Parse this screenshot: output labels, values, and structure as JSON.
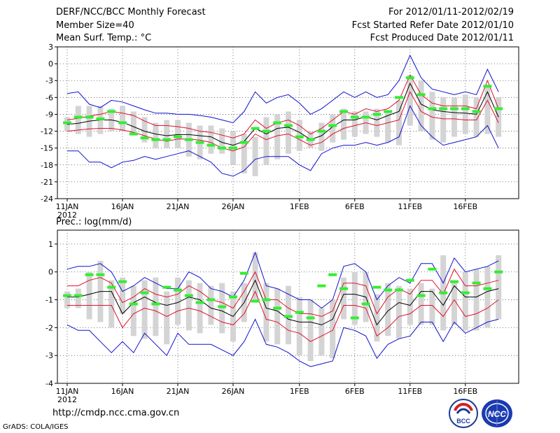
{
  "header": {
    "title": "DERF/NCC/BCC Monthly Forecast",
    "member_size": "Member Size=40",
    "variable1": "Mean Surf. Temp.: °C",
    "period": "For 2012/01/11-2012/02/19",
    "fcst_started": "Fcst Started Refer Date 2012/01/10",
    "fcst_produced": "Fcst Produced Date 2012/01/11"
  },
  "footer": {
    "url": "http://cmdp.ncc.cma.gov.cn",
    "credit": "GrADS: COLA/IGES",
    "logo1_text": "BCC",
    "logo2_text": "NCC"
  },
  "colors": {
    "box": "#d4d4d4",
    "ensemble_mean": "#000000",
    "spread": "#e01030",
    "extremes": "#1010d0",
    "observed": "#33ee33",
    "grid": "#555555"
  },
  "chart_data": [
    {
      "type": "line",
      "title": "Mean Surf. Temp.: °C",
      "x_tick_labels": [
        "11JAN",
        "16JAN",
        "21JAN",
        "26JAN",
        "1FEB",
        "6FEB",
        "11FEB",
        "16FEB"
      ],
      "x_year_label": "2012",
      "x_tick_days": [
        1,
        6,
        11,
        16,
        22,
        27,
        32,
        37
      ],
      "ylim": [
        -24,
        3
      ],
      "yticks": [
        3,
        0,
        -3,
        -6,
        -9,
        -12,
        -15,
        -18,
        -21,
        -24
      ],
      "days": [
        1,
        2,
        3,
        4,
        5,
        6,
        7,
        8,
        9,
        10,
        11,
        12,
        13,
        14,
        15,
        16,
        17,
        18,
        19,
        20,
        21,
        22,
        23,
        24,
        25,
        26,
        27,
        28,
        29,
        30,
        31,
        32,
        33,
        34,
        35,
        36,
        37,
        38,
        39,
        40
      ],
      "box_low": [
        -12,
        -12.5,
        -13,
        -12.5,
        -12,
        -12,
        -12.5,
        -14,
        -15,
        -15,
        -15,
        -16.5,
        -17,
        -16,
        -16,
        -18,
        -19.5,
        -20,
        -18,
        -17,
        -16,
        -15.5,
        -15,
        -15.5,
        -14,
        -13.5,
        -13,
        -12.5,
        -13,
        -14,
        -14.5,
        -11,
        -12,
        -13.5,
        -14,
        -13,
        -12.5,
        -13,
        -12.5,
        -13
      ],
      "box_high": [
        -9.5,
        -7.5,
        -7.5,
        -7.5,
        -8,
        -7.5,
        -8.5,
        -9.5,
        -10.5,
        -10,
        -10,
        -10.5,
        -11,
        -11,
        -11.5,
        -12,
        -12.5,
        -13,
        -9.5,
        -9,
        -8.5,
        -10,
        -12,
        -10.5,
        -9,
        -8,
        -8.5,
        -8.5,
        -8,
        -8.5,
        -6.5,
        -2,
        -3,
        -5,
        -6,
        -6,
        -5.5,
        -6,
        -4,
        -6
      ],
      "series": [
        {
          "name": "ensemble_max",
          "role": "extremes",
          "values": [
            -5.3,
            -5,
            -7.2,
            -7.8,
            -6.5,
            -6.8,
            -7.5,
            -8.2,
            -8.8,
            -8.8,
            -9,
            -9,
            -9.2,
            -9.5,
            -10,
            -10.5,
            -8.5,
            -5,
            -7,
            -6,
            -5.5,
            -7,
            -9,
            -8,
            -6.5,
            -5,
            -6,
            -5,
            -6,
            -5.5,
            -3,
            1.5,
            -2.5,
            -4.5,
            -5,
            -5.5,
            -5,
            -5.5,
            -1,
            -5
          ]
        },
        {
          "name": "spread_upper",
          "role": "spread",
          "values": [
            -10,
            -9.7,
            -9.3,
            -9,
            -8.5,
            -8.8,
            -9.2,
            -10.2,
            -11,
            -11,
            -11.2,
            -11.5,
            -12,
            -12.2,
            -12.7,
            -13.2,
            -12.5,
            -10,
            -11.5,
            -10.5,
            -10,
            -11,
            -12.5,
            -11.5,
            -10,
            -8.5,
            -9,
            -8,
            -8.5,
            -8,
            -6.5,
            -2,
            -5.5,
            -7,
            -7.5,
            -7.5,
            -7.5,
            -8,
            -3,
            -8
          ]
        },
        {
          "name": "ensemble_mean",
          "role": "ensemble_mean",
          "values": [
            -10.8,
            -10.6,
            -10.2,
            -10,
            -10,
            -10.4,
            -11.2,
            -12,
            -12.5,
            -12.8,
            -12.6,
            -12.6,
            -12.8,
            -13,
            -14,
            -14.5,
            -13.8,
            -11.5,
            -12.5,
            -11.5,
            -11.3,
            -12.2,
            -13.5,
            -12.8,
            -11.2,
            -10,
            -10,
            -9.4,
            -10,
            -9.2,
            -8.5,
            -3.5,
            -7.2,
            -8.2,
            -8.5,
            -8.7,
            -8.8,
            -9,
            -5,
            -9.5
          ]
        },
        {
          "name": "spread_lower",
          "role": "spread",
          "values": [
            -12,
            -11.8,
            -11.6,
            -11.5,
            -11.5,
            -11.8,
            -12.2,
            -12.8,
            -13.4,
            -13.8,
            -13.4,
            -13.4,
            -13.6,
            -14,
            -15,
            -15.5,
            -14.8,
            -12.5,
            -13.5,
            -12.8,
            -12.5,
            -13.5,
            -14.5,
            -14,
            -12.5,
            -11.5,
            -11,
            -10.5,
            -11,
            -10.5,
            -10,
            -5,
            -8.5,
            -9.5,
            -9.8,
            -9.8,
            -10,
            -10,
            -6.5,
            -10.5
          ]
        },
        {
          "name": "ensemble_min",
          "role": "extremes",
          "values": [
            -15.5,
            -15.5,
            -17.5,
            -17.5,
            -18.5,
            -17.5,
            -17.2,
            -16.5,
            -17,
            -16.5,
            -16,
            -15.5,
            -16.5,
            -17.5,
            -19.5,
            -20,
            -19,
            -17,
            -16.5,
            -16.5,
            -16.5,
            -18,
            -19,
            -16,
            -15,
            -14.5,
            -14.5,
            -14,
            -14.5,
            -14,
            -13,
            -7.5,
            -11,
            -13,
            -14.5,
            -14,
            -13.5,
            -13,
            -11,
            -15
          ]
        },
        {
          "name": "observed",
          "role": "observed",
          "values": [
            -10.5,
            -9.5,
            -9.5,
            -9.8,
            -8.5,
            -10.5,
            -12.5,
            -13.2,
            -13.5,
            -13.5,
            -13,
            -13.5,
            -14,
            -14.5,
            -15,
            -15,
            -14,
            -11.5,
            -12,
            -10.5,
            -11,
            -13,
            -13.5,
            -12,
            -11,
            -8.5,
            -9.5,
            -9.5,
            -9,
            -8.5,
            -6,
            -2.5,
            -5.5,
            -8,
            -8,
            -8,
            -8,
            -8.5,
            -4,
            -8
          ]
        }
      ]
    },
    {
      "type": "line",
      "title": "Prec.: log(mm/d)",
      "x_tick_labels": [
        "11JAN",
        "16JAN",
        "21JAN",
        "26JAN",
        "1FEB",
        "6FEB",
        "11FEB",
        "16FEB"
      ],
      "x_year_label": "2012",
      "x_tick_days": [
        1,
        6,
        11,
        16,
        22,
        27,
        32,
        37
      ],
      "ylim": [
        -4,
        1.5
      ],
      "yticks": [
        1,
        0,
        -1,
        -2,
        -3,
        -4
      ],
      "days": [
        1,
        2,
        3,
        4,
        5,
        6,
        7,
        8,
        9,
        10,
        11,
        12,
        13,
        14,
        15,
        16,
        17,
        18,
        19,
        20,
        21,
        22,
        23,
        24,
        25,
        26,
        27,
        28,
        29,
        30,
        31,
        32,
        33,
        34,
        35,
        36,
        37,
        38,
        39,
        40
      ],
      "box_low": [
        -1.3,
        -1.3,
        -1.7,
        -1.8,
        -2,
        -1.5,
        -2.3,
        -2.4,
        -2.3,
        -2.6,
        -1.9,
        -2.1,
        -2.2,
        -1.9,
        -2.2,
        -2.5,
        -1.8,
        -1,
        -2.5,
        -2.6,
        -2.6,
        -3,
        -3.2,
        -3,
        -3.1,
        -1.7,
        -1.9,
        -1.8,
        -2.5,
        -2.3,
        -2.4,
        -1.9,
        -1.9,
        -1.9,
        -2.1,
        -1.9,
        -2.1,
        -2.1,
        -2,
        -1.7
      ],
      "box_high": [
        -0.7,
        -0.6,
        0,
        0.4,
        -0.3,
        -0.2,
        -0.5,
        -0.3,
        -0.2,
        -0.7,
        -0.2,
        -0.3,
        -0.4,
        -0.5,
        -0.4,
        -0.7,
        -0.4,
        0.7,
        -0.4,
        -0.6,
        -0.5,
        -0.9,
        -1.0,
        -1.3,
        -1.0,
        -0.2,
        0,
        0,
        -0.8,
        -0.4,
        -0.5,
        -0.6,
        -0.4,
        -0.6,
        0.6,
        -0.3,
        0,
        0.1,
        0.2,
        0.6
      ],
      "series": [
        {
          "name": "ensemble_max",
          "role": "extremes",
          "values": [
            0.1,
            0.2,
            0.2,
            0.3,
            0,
            -0.7,
            -0.5,
            -0.2,
            -0.4,
            -0.6,
            -0.6,
            0,
            -0.2,
            -0.6,
            -0.7,
            -0.9,
            -0.3,
            0.7,
            -0.5,
            -0.6,
            -0.8,
            -1,
            -1,
            -1.3,
            -1,
            0.2,
            0.3,
            0,
            -1,
            -0.5,
            -0.2,
            -0.4,
            0.3,
            0.3,
            -0.4,
            0.5,
            0,
            0.1,
            0.2,
            0.4
          ]
        },
        {
          "name": "spread_upper",
          "role": "spread",
          "values": [
            -0.5,
            -0.5,
            -0.3,
            -0.2,
            -0.4,
            -1.1,
            -0.9,
            -0.6,
            -0.8,
            -0.9,
            -0.8,
            -0.5,
            -0.7,
            -1,
            -1.1,
            -1.3,
            -0.7,
            0,
            -1,
            -1,
            -1.3,
            -1.5,
            -1.5,
            -1.6,
            -1.4,
            -0.4,
            -0.4,
            -0.5,
            -1.5,
            -0.9,
            -0.6,
            -0.8,
            -0.3,
            -0.3,
            -0.8,
            0.1,
            -0.5,
            -0.5,
            -0.4,
            -0.3
          ]
        },
        {
          "name": "ensemble_mean",
          "role": "ensemble_mean",
          "values": [
            -0.9,
            -0.9,
            -0.8,
            -0.7,
            -0.7,
            -1.5,
            -1.1,
            -0.9,
            -1.1,
            -1.2,
            -1.1,
            -0.9,
            -1,
            -1.3,
            -1.4,
            -1.6,
            -1.1,
            -0.3,
            -1.3,
            -1.4,
            -1.7,
            -1.8,
            -1.8,
            -1.9,
            -1.7,
            -0.8,
            -0.8,
            -0.9,
            -1.9,
            -1.4,
            -1.1,
            -1.2,
            -0.7,
            -0.7,
            -1.2,
            -0.5,
            -0.9,
            -0.9,
            -0.7,
            -0.6
          ]
        },
        {
          "name": "spread_lower",
          "role": "spread",
          "values": [
            -1.2,
            -1.2,
            -1.2,
            -1.2,
            -1.2,
            -2,
            -1.5,
            -1.3,
            -1.4,
            -1.6,
            -1.4,
            -1.3,
            -1.4,
            -1.6,
            -1.8,
            -1.9,
            -1.5,
            -0.7,
            -1.7,
            -1.8,
            -2.1,
            -2.2,
            -2.5,
            -2.3,
            -2.1,
            -1.2,
            -1.2,
            -1.3,
            -2.3,
            -2,
            -1.6,
            -1.5,
            -1.2,
            -1.2,
            -1.6,
            -1,
            -1.6,
            -1.5,
            -1.3,
            -1
          ]
        },
        {
          "name": "ensemble_min",
          "role": "extremes",
          "values": [
            -1.9,
            -2.1,
            -2.1,
            -2.5,
            -2.9,
            -2.5,
            -2.9,
            -2.2,
            -2.6,
            -3,
            -2.2,
            -2.6,
            -2.6,
            -2.6,
            -2.8,
            -3,
            -2.5,
            -1.7,
            -2.6,
            -2.7,
            -2.9,
            -3.2,
            -3.4,
            -3.3,
            -3.2,
            -2,
            -2.1,
            -2.3,
            -3.1,
            -2.6,
            -2.4,
            -2.3,
            -1.8,
            -1.8,
            -2.5,
            -1.8,
            -2.2,
            -2,
            -1.8,
            -1.7
          ]
        },
        {
          "name": "observed",
          "role": "observed",
          "values": [
            -0.85,
            -0.85,
            -0.1,
            -0.1,
            -0.55,
            -0.35,
            -1.15,
            -0.75,
            -1.15,
            -0.55,
            -0.65,
            -0.85,
            -1.1,
            -1,
            -1.25,
            -0.9,
            -0.05,
            -1.05,
            -1,
            -1.3,
            -1.6,
            -1.45,
            -1.65,
            -0.5,
            -0.1,
            -0.6,
            -1.65,
            -1.15,
            -0.55,
            -0.65,
            -0.65,
            -0.3,
            -0.85,
            0.1,
            -0.75,
            -0.35,
            -0.75,
            -0.4,
            -0.6,
            0
          ]
        }
      ]
    }
  ]
}
